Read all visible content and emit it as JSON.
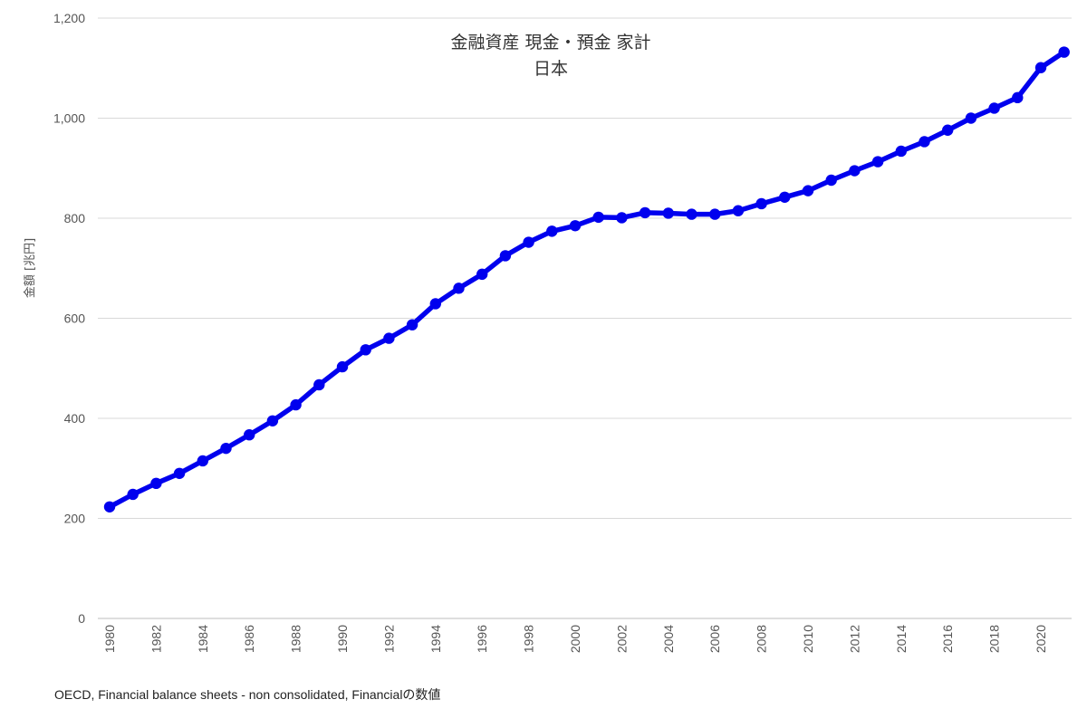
{
  "chart_data": {
    "type": "line",
    "title": "金融資産 現金・預金 家計",
    "subtitle": "日本",
    "ylabel": "金額 [兆円]",
    "xlabel": "",
    "ylim": [
      0,
      1200
    ],
    "yticks": [
      0,
      200,
      400,
      600,
      800,
      1000,
      1200
    ],
    "ytick_labels": [
      "0",
      "200",
      "400",
      "600",
      "800",
      "1,000",
      "1,200"
    ],
    "xtick_labels": [
      "1980",
      "1982",
      "1984",
      "1986",
      "1988",
      "1990",
      "1992",
      "1994",
      "1996",
      "1998",
      "2000",
      "2002",
      "2004",
      "2006",
      "2008",
      "2010",
      "2012",
      "2014",
      "2016",
      "2018",
      "2020"
    ],
    "grid": true,
    "series": [
      {
        "color": "#0000ee",
        "x": [
          1980,
          1981,
          1982,
          1983,
          1984,
          1985,
          1986,
          1987,
          1988,
          1989,
          1990,
          1991,
          1992,
          1993,
          1994,
          1995,
          1996,
          1997,
          1998,
          1999,
          2000,
          2001,
          2002,
          2003,
          2004,
          2005,
          2006,
          2007,
          2008,
          2009,
          2010,
          2011,
          2012,
          2013,
          2014,
          2015,
          2016,
          2017,
          2018,
          2019,
          2020,
          2021
        ],
        "values": [
          223,
          248,
          270,
          290,
          315,
          340,
          367,
          395,
          427,
          467,
          503,
          537,
          560,
          587,
          629,
          660,
          688,
          725,
          752,
          774,
          785,
          802,
          801,
          811,
          810,
          808,
          808,
          815,
          829,
          842,
          855,
          876,
          895,
          913,
          934,
          953,
          976,
          1000,
          1020,
          1041,
          1101,
          1132
        ]
      }
    ]
  },
  "source_note": "OECD, Financial balance sheets - non consolidated, Financialの数値"
}
